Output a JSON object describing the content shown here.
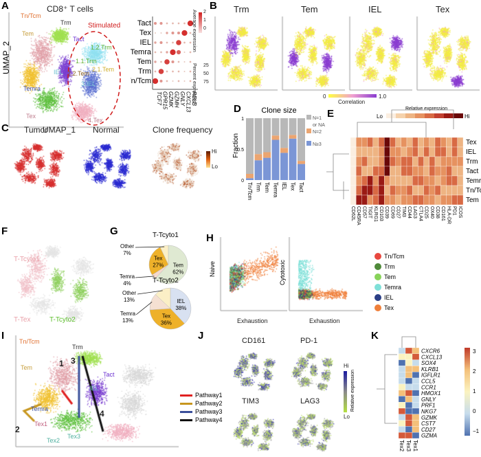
{
  "panels": {
    "A": "A",
    "B": "B",
    "C": "C",
    "D": "D",
    "E": "E",
    "F": "F",
    "G": "G",
    "H": "H",
    "I": "I",
    "J": "J",
    "K": "K"
  },
  "panelA": {
    "title": "CD8⁺ T cells",
    "xlabel": "UMAP_1",
    "ylabel": "UMAP_2",
    "stimulated": "Stimulated",
    "clusters": [
      "Tn/Tcm",
      "Trm",
      "Tem",
      "Tact",
      "IEL",
      "Temra",
      "Tex",
      "1.2.Trm",
      "1.1.Trm",
      "2.2.Tem",
      "2.1.Tem",
      "3.IEL",
      "4.Tex"
    ],
    "dotplot": {
      "rows": [
        "Tact",
        "Tex",
        "IEL",
        "Temra",
        "Tem",
        "Trm",
        "Tn/Tcm"
      ],
      "genes": [
        "TCF7",
        "GPR15",
        "GZMK",
        "GZMH",
        "GNLY",
        "CXCL13",
        "RELB"
      ],
      "legend_avg": "Average expression",
      "avg_ticks": [
        "2",
        "1",
        "0"
      ],
      "legend_pct": "Percent expressed",
      "pct_ticks": [
        "25",
        "50",
        "75"
      ]
    }
  },
  "panelB": {
    "titles": [
      "Trm",
      "Tem",
      "IEL",
      "Tex"
    ],
    "colorbar": {
      "min": "0",
      "max": "1.0",
      "label": "Correlation"
    }
  },
  "panelC": {
    "titles": [
      "Tumor",
      "Normal",
      "Clone frequency"
    ],
    "hi": "Hi",
    "lo": "Lo",
    "colors": [
      "#d62f2f",
      "#2a2ad0",
      "#b5562a"
    ]
  },
  "panelE": {
    "legend_title": "Relative expression",
    "lo": "Lo",
    "hi": "Hi",
    "rows": [
      "Tex",
      "IEL",
      "Trm",
      "Tact",
      "Temra",
      "Tn/Tcm",
      "Tem"
    ],
    "cols": [
      "CD62L",
      "CD45RA",
      "CD57",
      "TIGIT",
      "KLRG1",
      "CD103",
      "CD39",
      "CD69",
      "CD27",
      "TIM3",
      "CD44",
      "LAG3",
      "CTLA4",
      "CD25",
      "OX40",
      "CD38",
      "CD161",
      "HLA-DR",
      "PD1",
      "ICOS"
    ]
  },
  "panelF": {
    "labels": [
      "T-Tcyto1",
      "T-Tex",
      "T-Tcyto2"
    ]
  },
  "panelH": {
    "plots": [
      {
        "ylabel": "Naive",
        "xlabel": "Exhaustion"
      },
      {
        "ylabel": "Cytotoxic",
        "xlabel": "Exhaustion"
      }
    ],
    "legend": [
      {
        "name": "Tn/Tcm",
        "color": "#e8483f"
      },
      {
        "name": "Trm",
        "color": "#4f8a3a"
      },
      {
        "name": "Tem",
        "color": "#88d35a"
      },
      {
        "name": "Temra",
        "color": "#7fe0d8"
      },
      {
        "name": "IEL",
        "color": "#2b3f86"
      },
      {
        "name": "Tex",
        "color": "#ef7f3a"
      }
    ]
  },
  "panelI": {
    "clusters": [
      "Tn/Tcm",
      "Trm",
      "Tem",
      "Tact",
      "IEL",
      "Temra",
      "Tex1",
      "Tex2",
      "Tex3"
    ],
    "arrows": [
      "1",
      "2",
      "3",
      "4"
    ],
    "legend": [
      {
        "name": "Pathway1",
        "color": "#e02020"
      },
      {
        "name": "Pathway2",
        "color": "#c7961e"
      },
      {
        "name": "Pathway3",
        "color": "#3a4f9a"
      },
      {
        "name": "Pathway4",
        "color": "#111111"
      }
    ]
  },
  "panelJ": {
    "titles": [
      "CD161",
      "PD-1",
      "TIM3",
      "LAG3"
    ],
    "hi": "Hi",
    "lo": "Lo",
    "colorbar_label": "Relative expression"
  },
  "panelK": {
    "genes": [
      "CXCR6",
      "CXCL13",
      "SOX4",
      "KLRB1",
      "IGFLR1",
      "CCL5",
      "CCR1",
      "HMOX1",
      "GNLY",
      "PRF1",
      "NKG7",
      "GZMK",
      "CST7",
      "CD27",
      "GZMA"
    ],
    "cols": [
      "Tex2",
      "Tex3",
      "Tex1"
    ],
    "ticks": [
      "3",
      "2",
      "1",
      "0",
      "−1"
    ]
  },
  "chart_data": [
    {
      "type": "bar",
      "title": "Clone size",
      "ylabel": "Fraction",
      "ylim": [
        0,
        1
      ],
      "yticks": [
        "0",
        "0.5",
        "1"
      ],
      "categories": [
        "Tn/Tcm",
        "Trm",
        "Tem",
        "Temra",
        "IEL",
        "Tex",
        "Tact"
      ],
      "series": [
        {
          "name": "N≥3",
          "color": "#7b96d6",
          "values": [
            0.03,
            0.32,
            0.36,
            0.65,
            0.44,
            0.67,
            0.26
          ]
        },
        {
          "name": "N=2",
          "color": "#eba571",
          "values": [
            0.07,
            0.1,
            0.09,
            0.07,
            0.08,
            0.06,
            0.05
          ]
        },
        {
          "name": "N=1 or NA",
          "color": "#b8b8b8",
          "values": [
            0.9,
            0.58,
            0.55,
            0.28,
            0.48,
            0.27,
            0.69
          ]
        }
      ],
      "legend_position": "right"
    },
    {
      "type": "pie",
      "title": "T-Tcyto1",
      "slices": [
        {
          "label": "Tem",
          "value": 62,
          "text": "62%",
          "color": "#dfe9d2"
        },
        {
          "label": "Temra",
          "value": 4,
          "text": "4%",
          "color": "#f5d9cc"
        },
        {
          "label": "Tex",
          "value": 27,
          "text": "27%",
          "color": "#eeb12a"
        },
        {
          "label": "Other",
          "value": 7,
          "text": "7%",
          "color": "#fbefc6"
        }
      ]
    },
    {
      "type": "pie",
      "title": "T-Tcyto2",
      "slices": [
        {
          "label": "IEL",
          "value": 38,
          "text": "38%",
          "color": "#d8e1f1"
        },
        {
          "label": "Tex",
          "value": 36,
          "text": "36%",
          "color": "#eeb12a"
        },
        {
          "label": "Temra",
          "value": 13,
          "text": "13%",
          "color": "#f5e0d2"
        },
        {
          "label": "Other",
          "value": 13,
          "text": "13%",
          "color": "#fbefc6"
        }
      ]
    }
  ]
}
